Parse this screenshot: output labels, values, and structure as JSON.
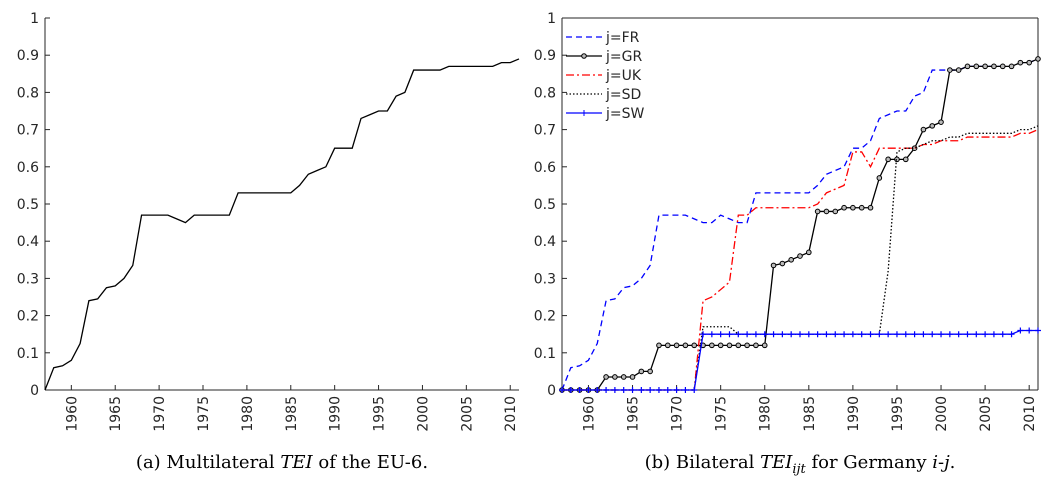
{
  "chart_data": [
    {
      "type": "line",
      "caption": [
        {
          "text": "(a) Multilateral ",
          "style": "normal"
        },
        {
          "text": "TEI",
          "style": "italic"
        },
        {
          "text": " of the EU-6.",
          "style": "normal"
        }
      ],
      "x": [
        1957,
        1958,
        1959,
        1960,
        1961,
        1962,
        1963,
        1964,
        1965,
        1966,
        1967,
        1968,
        1969,
        1970,
        1971,
        1972,
        1973,
        1974,
        1975,
        1976,
        1977,
        1978,
        1979,
        1980,
        1981,
        1982,
        1983,
        1984,
        1985,
        1986,
        1987,
        1988,
        1989,
        1990,
        1991,
        1992,
        1993,
        1994,
        1995,
        1996,
        1997,
        1998,
        1999,
        2000,
        2001,
        2002,
        2003,
        2004,
        2005,
        2006,
        2007,
        2008,
        2009,
        2010,
        2011
      ],
      "series": [
        {
          "color": "#000000",
          "dash": "solid",
          "marker": "none",
          "values": [
            0,
            0.06,
            0.065,
            0.08,
            0.125,
            0.24,
            0.245,
            0.275,
            0.28,
            0.3,
            0.335,
            0.47,
            0.47,
            0.47,
            0.47,
            0.46,
            0.45,
            0.47,
            0.47,
            0.47,
            0.47,
            0.47,
            0.53,
            0.53,
            0.53,
            0.53,
            0.53,
            0.53,
            0.53,
            0.55,
            0.58,
            0.59,
            0.6,
            0.65,
            0.65,
            0.65,
            0.73,
            0.74,
            0.75,
            0.75,
            0.79,
            0.8,
            0.86,
            0.86,
            0.86,
            0.86,
            0.87,
            0.87,
            0.87,
            0.87,
            0.87,
            0.87,
            0.88,
            0.88,
            0.89
          ]
        }
      ],
      "xlim": [
        1957,
        2011
      ],
      "xticks": [
        1960,
        1965,
        1970,
        1975,
        1980,
        1985,
        1990,
        1995,
        2000,
        2005,
        2010
      ],
      "ylim": [
        0,
        1
      ],
      "yticks": [
        0,
        0.1,
        0.2,
        0.3,
        0.4,
        0.5,
        0.6,
        0.7,
        0.8,
        0.9,
        1
      ],
      "box": false
    },
    {
      "type": "line",
      "caption": [
        {
          "text": "(b) Bilateral ",
          "style": "normal"
        },
        {
          "text": "TEI",
          "style": "italic"
        },
        {
          "text": "ijt",
          "style": "sub"
        },
        {
          "text": " for Germany ",
          "style": "normal"
        },
        {
          "text": "i",
          "style": "italic"
        },
        {
          "text": "-",
          "style": "normal"
        },
        {
          "text": "j",
          "style": "italic"
        },
        {
          "text": ".",
          "style": "normal"
        }
      ],
      "x": [
        1957,
        1958,
        1959,
        1960,
        1961,
        1962,
        1963,
        1964,
        1965,
        1966,
        1967,
        1968,
        1969,
        1970,
        1971,
        1972,
        1973,
        1974,
        1975,
        1976,
        1977,
        1978,
        1979,
        1980,
        1981,
        1982,
        1983,
        1984,
        1985,
        1986,
        1987,
        1988,
        1989,
        1990,
        1991,
        1992,
        1993,
        1994,
        1995,
        1996,
        1997,
        1998,
        1999,
        2000,
        2001,
        2002,
        2003,
        2004,
        2005,
        2006,
        2007,
        2008,
        2009,
        2010,
        2011
      ],
      "series": [
        {
          "name": "j=FR",
          "color": "#0000ff",
          "dash": "dashed",
          "marker": "none",
          "values": [
            0,
            0.06,
            0.065,
            0.08,
            0.125,
            0.24,
            0.245,
            0.275,
            0.28,
            0.3,
            0.335,
            0.47,
            0.47,
            0.47,
            0.47,
            0.46,
            0.45,
            0.45,
            0.47,
            0.46,
            0.45,
            0.45,
            0.53,
            0.53,
            0.53,
            0.53,
            0.53,
            0.53,
            0.53,
            0.55,
            0.58,
            0.59,
            0.6,
            0.65,
            0.65,
            0.67,
            0.73,
            0.74,
            0.75,
            0.75,
            0.79,
            0.8,
            0.86,
            0.86,
            0.86,
            0.86,
            0.87,
            0.87,
            0.87,
            0.87,
            0.87,
            0.87,
            0.88,
            0.88,
            0.89
          ]
        },
        {
          "name": "j=GR",
          "color": "#000000",
          "dash": "solid",
          "marker": "circle",
          "values": [
            0,
            0,
            0,
            0,
            0,
            0.035,
            0.035,
            0.035,
            0.035,
            0.05,
            0.05,
            0.12,
            0.12,
            0.12,
            0.12,
            0.12,
            0.12,
            0.12,
            0.12,
            0.12,
            0.12,
            0.12,
            0.12,
            0.12,
            0.335,
            0.34,
            0.35,
            0.36,
            0.37,
            0.48,
            0.48,
            0.48,
            0.49,
            0.49,
            0.49,
            0.49,
            0.57,
            0.62,
            0.62,
            0.62,
            0.65,
            0.7,
            0.71,
            0.72,
            0.86,
            0.86,
            0.87,
            0.87,
            0.87,
            0.87,
            0.87,
            0.87,
            0.88,
            0.88,
            0.89
          ]
        },
        {
          "name": "j=UK",
          "color": "#ff0000",
          "dash": "dashdot",
          "marker": "none",
          "values": [
            0,
            0,
            0,
            0,
            0,
            0,
            0,
            0,
            0,
            0,
            0,
            0,
            0,
            0,
            0,
            0,
            0.24,
            0.25,
            0.27,
            0.29,
            0.47,
            0.47,
            0.49,
            0.49,
            0.49,
            0.49,
            0.49,
            0.49,
            0.49,
            0.5,
            0.53,
            0.54,
            0.55,
            0.64,
            0.64,
            0.6,
            0.65,
            0.65,
            0.65,
            0.65,
            0.65,
            0.66,
            0.66,
            0.67,
            0.67,
            0.67,
            0.68,
            0.68,
            0.68,
            0.68,
            0.68,
            0.68,
            0.69,
            0.69,
            0.7
          ]
        },
        {
          "name": "j=SD",
          "color": "#000000",
          "dash": "dotted",
          "marker": "none",
          "values": [
            0,
            0,
            0,
            0,
            0,
            0,
            0,
            0,
            0,
            0,
            0,
            0,
            0,
            0,
            0,
            0,
            0.17,
            0.17,
            0.17,
            0.17,
            0.15,
            0.15,
            0.15,
            0.15,
            0.15,
            0.15,
            0.15,
            0.15,
            0.15,
            0.15,
            0.15,
            0.15,
            0.15,
            0.15,
            0.15,
            0.15,
            0.15,
            0.32,
            0.64,
            0.65,
            0.65,
            0.66,
            0.67,
            0.67,
            0.68,
            0.68,
            0.69,
            0.69,
            0.69,
            0.69,
            0.69,
            0.69,
            0.7,
            0.7,
            0.71
          ]
        },
        {
          "name": "j=SW",
          "color": "#0000ff",
          "dash": "solid",
          "marker": "plus",
          "values": [
            0,
            0,
            0,
            0,
            0,
            0,
            0,
            0,
            0,
            0,
            0,
            0,
            0,
            0,
            0,
            0,
            0.15,
            0.15,
            0.15,
            0.15,
            0.15,
            0.15,
            0.15,
            0.15,
            0.15,
            0.15,
            0.15,
            0.15,
            0.15,
            0.15,
            0.15,
            0.15,
            0.15,
            0.15,
            0.15,
            0.15,
            0.15,
            0.15,
            0.15,
            0.15,
            0.15,
            0.15,
            0.15,
            0.15,
            0.15,
            0.15,
            0.15,
            0.15,
            0.15,
            0.15,
            0.15,
            0.15,
            0.16,
            0.16,
            0.16
          ]
        }
      ],
      "xlim": [
        1957,
        2011
      ],
      "xticks": [
        1960,
        1965,
        1970,
        1975,
        1980,
        1985,
        1990,
        1995,
        2000,
        2005,
        2010
      ],
      "ylim": [
        0,
        1
      ],
      "yticks": [
        0,
        0.1,
        0.2,
        0.3,
        0.4,
        0.5,
        0.6,
        0.7,
        0.8,
        0.9,
        1
      ],
      "box": true,
      "legend": "upper left"
    }
  ]
}
